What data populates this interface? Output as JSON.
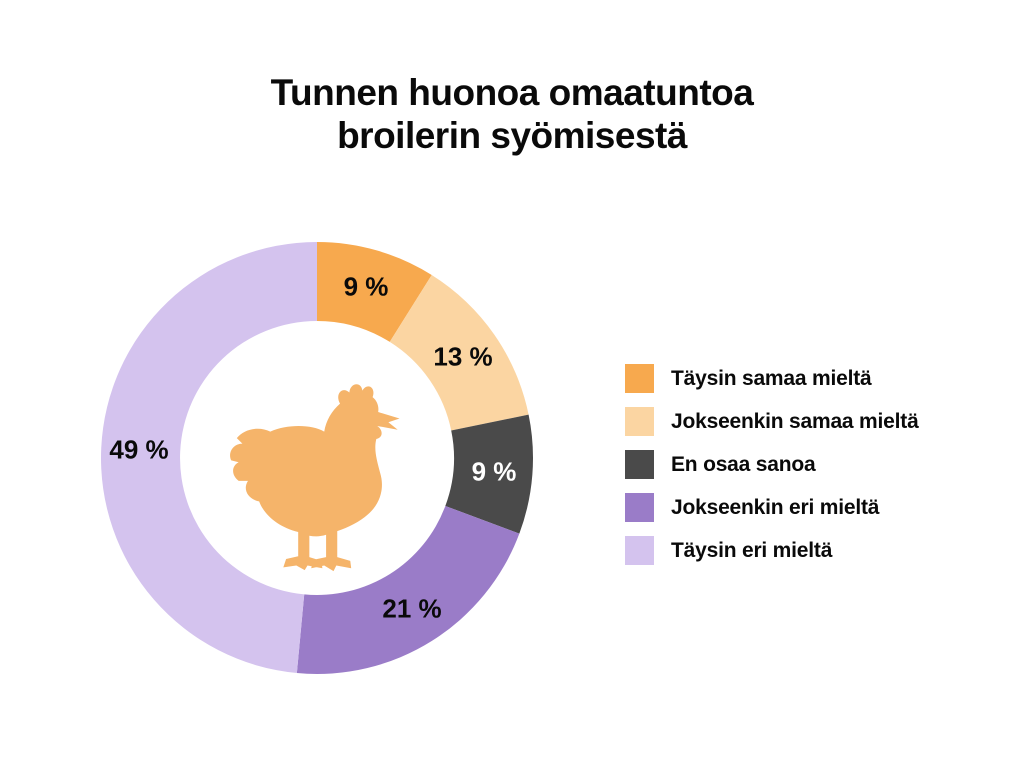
{
  "title": {
    "line1": "Tunnen huonoa omaatuntoa",
    "line2": "broilerin syömisestä"
  },
  "chart_data": {
    "type": "pie",
    "variant": "donut",
    "title": "Tunnen huonoa omaatuntoa broilerin syömisestä",
    "categories": [
      "Täysin samaa mieltä",
      "Jokseenkin samaa mieltä",
      "En osaa sanoa",
      "Jokseenkin eri mieltä",
      "Täysin eri mieltä"
    ],
    "values": [
      9,
      13,
      9,
      21,
      49
    ],
    "slice_labels": [
      "9 %",
      "13 %",
      "9 %",
      "21 %",
      "49 %"
    ],
    "colors": [
      "#F7A94E",
      "#FBD5A2",
      "#4A4A4A",
      "#9A7CC8",
      "#D4C3EE"
    ],
    "slice_label_colors": [
      "#0a0a0a",
      "#0a0a0a",
      "#ffffff",
      "#0a0a0a",
      "#0a0a0a"
    ],
    "start_angle_deg": 0,
    "direction": "clockwise",
    "donut_hole_ratio": 0.635,
    "legend_position": "right",
    "grid": false,
    "center_icon": "chicken-silhouette",
    "center_icon_color": "#F5B46A",
    "background": "#FFFFFF",
    "text_color": "#0a0a0a"
  }
}
